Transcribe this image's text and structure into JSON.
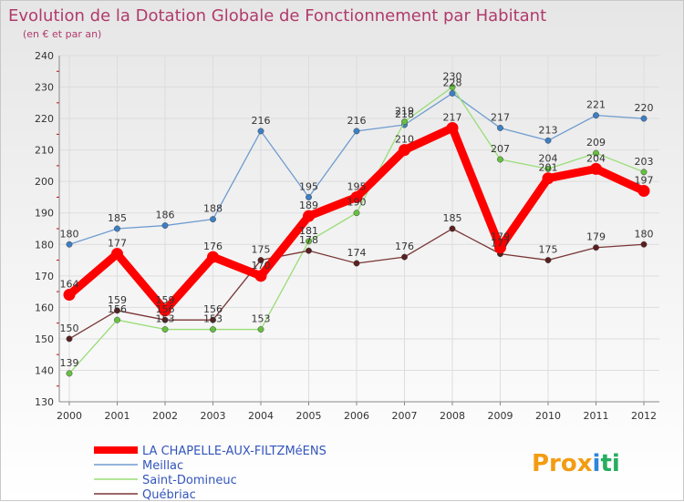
{
  "chart_data": {
    "type": "line",
    "title": "Evolution de la Dotation Globale de Fonctionnement par Habitant",
    "subtitle": "(en € et par an)",
    "xlabel": "",
    "ylabel": "",
    "ylim": [
      130,
      240
    ],
    "yticks": [
      130,
      140,
      150,
      160,
      170,
      180,
      190,
      200,
      210,
      220,
      230,
      240
    ],
    "categories": [
      "2000",
      "2001",
      "2002",
      "2003",
      "2004",
      "2005",
      "2006",
      "2007",
      "2008",
      "2009",
      "2010",
      "2011",
      "2012"
    ],
    "series": [
      {
        "name": "Meillac",
        "color": "#6f9ccf",
        "marker": "#3d7fc4",
        "values": [
          180,
          185,
          186,
          188,
          216,
          195,
          216,
          218,
          228,
          217,
          213,
          221,
          220
        ]
      },
      {
        "name": "Saint-Domineuc",
        "color": "#99dd77",
        "marker": "#66c040",
        "values": [
          139,
          156,
          153,
          153,
          153,
          181,
          190,
          219,
          230,
          207,
          204,
          209,
          203
        ]
      },
      {
        "name": "Québriac",
        "color": "#7a3636",
        "marker": "#5a1f1f",
        "values": [
          150,
          159,
          156,
          156,
          175,
          178,
          174,
          176,
          185,
          177,
          175,
          179,
          180
        ]
      },
      {
        "name": "LA CHAPELLE-AUX-FILTZMéENS",
        "color": "#ff0000",
        "marker": "#ff0000",
        "values": [
          164,
          177,
          159,
          176,
          170,
          189,
          195,
          210,
          217,
          179,
          201,
          204,
          197
        ]
      }
    ],
    "legend": {
      "position": "bottom-left",
      "entries": [
        "LA CHAPELLE-AUX-FILTZMéENS",
        "Meillac",
        "Saint-Domineuc",
        "Québriac"
      ]
    }
  },
  "colors": {
    "title": "#b03a6b",
    "legend_text": "#3355bb",
    "grid": "#dddddd",
    "axis": "#888888"
  },
  "logo": {
    "text": "Prox",
    "text_mid": "i",
    "text_end": "ti"
  }
}
